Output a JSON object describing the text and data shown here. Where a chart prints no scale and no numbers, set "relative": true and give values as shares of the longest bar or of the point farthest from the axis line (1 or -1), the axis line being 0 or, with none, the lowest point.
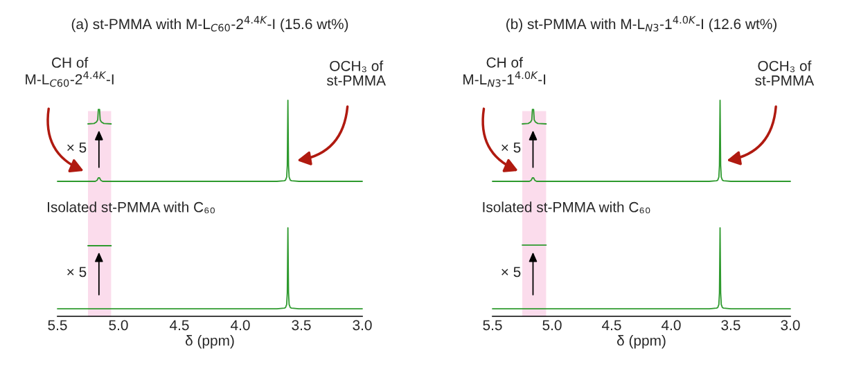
{
  "chart_data": [
    {
      "type": "line",
      "title": "(a) st-PMMA with M-L$_{C60}$-2$^{4.4K}$-I (15.6 wt%)",
      "xlabel": "δ (ppm)",
      "relative": true,
      "xlim": [
        5.5,
        3.0
      ],
      "xticks": [
        5.5,
        {
          "value": 5,
          "label": "5.0"
        },
        4.5,
        {
          "value": 4,
          "label": "4.0"
        },
        3.5,
        {
          "value": 3,
          "label": "3.0"
        }
      ],
      "grid": false,
      "legend": false,
      "tick_labels": "x",
      "series": [
        {
          "color": "#2e9a2e",
          "x": [
            5.5,
            5.19,
            5.175,
            5.165,
            5.16,
            5.155,
            5.145,
            5.13,
            3.7,
            3.64,
            3.63,
            3.62,
            3.615,
            3.61,
            3.605,
            3.6,
            3.59,
            3.58,
            3.52,
            3.0
          ],
          "values": [
            0.625,
            0.625,
            0.63,
            0.641,
            0.641,
            0.641,
            0.63,
            0.625,
            0.625,
            0.628,
            0.63,
            0.645,
            0.7,
            1.0,
            0.7,
            0.645,
            0.63,
            0.628,
            0.625,
            0.625
          ]
        },
        {
          "color": "#2e9a2e",
          "x": [
            5.25,
            5.2,
            5.18,
            5.17,
            5.165,
            5.155,
            5.15,
            5.14,
            5.12,
            5.06
          ],
          "values": [
            0.891,
            0.893,
            0.9,
            0.91,
            0.958,
            0.958,
            0.91,
            0.9,
            0.893,
            0.891
          ]
        },
        {
          "color": "#2e9a2e",
          "x": [
            5.25,
            5.06
          ],
          "values": [
            0.327,
            0.327
          ]
        },
        {
          "color": "#2e9a2e",
          "x": [
            5.5,
            3.7,
            3.64,
            3.63,
            3.62,
            3.615,
            3.61,
            3.605,
            3.6,
            3.59,
            3.58,
            3.52,
            3.0
          ],
          "values": [
            0.035,
            0.035,
            0.038,
            0.04,
            0.055,
            0.11,
            0.41,
            0.11,
            0.055,
            0.04,
            0.038,
            0.035,
            0.035
          ]
        }
      ],
      "bands": [
        {
          "axis": "x",
          "from": 5.25,
          "to": 5.06,
          "color": "#fbdcec"
        }
      ],
      "annotations": [
        "CH of\nM-L$_{C60}$-2$^{4.4K}$-I",
        "OCH₃ of\nst-PMMA",
        "× 5",
        "× 5",
        "Isolated st-PMMA with C₆₀"
      ]
    },
    {
      "type": "line",
      "title": "(b) st-PMMA with M-L$_{N3}$-1$^{4.0K}$-I (12.6 wt%)",
      "xlabel": "δ (ppm)",
      "relative": true,
      "xlim": [
        5.5,
        3.0
      ],
      "xticks": [
        5.5,
        {
          "value": 5,
          "label": "5.0"
        },
        4.5,
        {
          "value": 4,
          "label": "4.0"
        },
        3.5,
        {
          "value": 3,
          "label": "3.0"
        }
      ],
      "grid": false,
      "legend": false,
      "tick_labels": "x",
      "series": [
        {
          "color": "#2e9a2e",
          "x": [
            5.5,
            5.19,
            5.175,
            5.165,
            5.16,
            5.155,
            5.145,
            5.13,
            3.68,
            3.62,
            3.61,
            3.6,
            3.595,
            3.59,
            3.585,
            3.58,
            3.57,
            3.56,
            3.5,
            3.0
          ],
          "values": [
            0.625,
            0.625,
            0.63,
            0.641,
            0.641,
            0.641,
            0.63,
            0.625,
            0.625,
            0.628,
            0.63,
            0.645,
            0.7,
            1.0,
            0.7,
            0.645,
            0.63,
            0.628,
            0.625,
            0.625
          ]
        },
        {
          "color": "#2e9a2e",
          "x": [
            5.25,
            5.2,
            5.18,
            5.17,
            5.165,
            5.155,
            5.15,
            5.14,
            5.12,
            5.05
          ],
          "values": [
            0.891,
            0.893,
            0.9,
            0.91,
            0.958,
            0.958,
            0.91,
            0.9,
            0.893,
            0.891
          ]
        },
        {
          "color": "#2e9a2e",
          "x": [
            5.25,
            5.05
          ],
          "values": [
            0.33,
            0.33
          ]
        },
        {
          "color": "#2e9a2e",
          "x": [
            5.5,
            3.68,
            3.62,
            3.61,
            3.6,
            3.595,
            3.59,
            3.585,
            3.58,
            3.57,
            3.56,
            3.5,
            3.0
          ],
          "values": [
            0.035,
            0.035,
            0.038,
            0.04,
            0.055,
            0.11,
            0.41,
            0.11,
            0.055,
            0.04,
            0.038,
            0.035,
            0.035
          ]
        }
      ],
      "bands": [
        {
          "axis": "x",
          "from": 5.25,
          "to": 5.05,
          "color": "#fbdcec"
        }
      ],
      "annotations": [
        "CH of\nM-L$_{N3}$-1$^{4.0K}$-I",
        "OCH₃ of\nst-PMMA",
        "× 5",
        "× 5",
        "Isolated st-PMMA with C₆₀"
      ]
    }
  ]
}
